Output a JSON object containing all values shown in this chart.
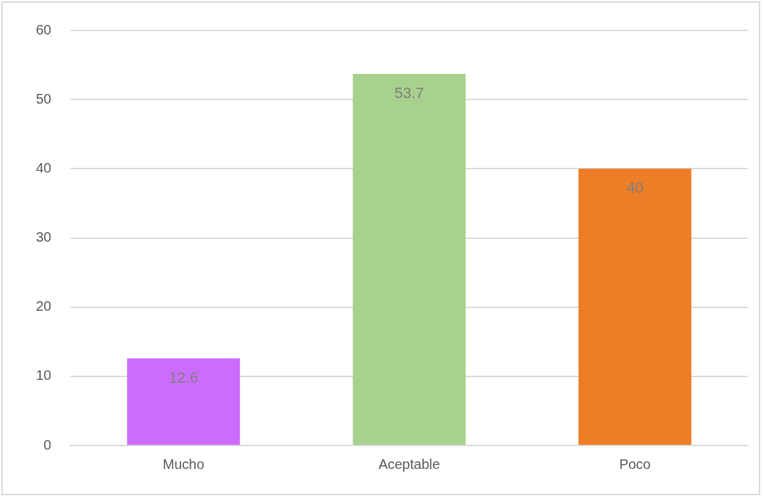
{
  "chart_data": {
    "type": "bar",
    "categories": [
      "Mucho",
      "Aceptable",
      "Poco"
    ],
    "values": [
      12.6,
      53.7,
      40
    ],
    "colors": [
      "#cc6cff",
      "#a9d18e",
      "#ed7d26"
    ],
    "ylim": [
      0,
      60
    ],
    "yticks": [
      0,
      10,
      20,
      30,
      40,
      50,
      60
    ],
    "grid": "y",
    "data_labels": true,
    "legend": false
  }
}
